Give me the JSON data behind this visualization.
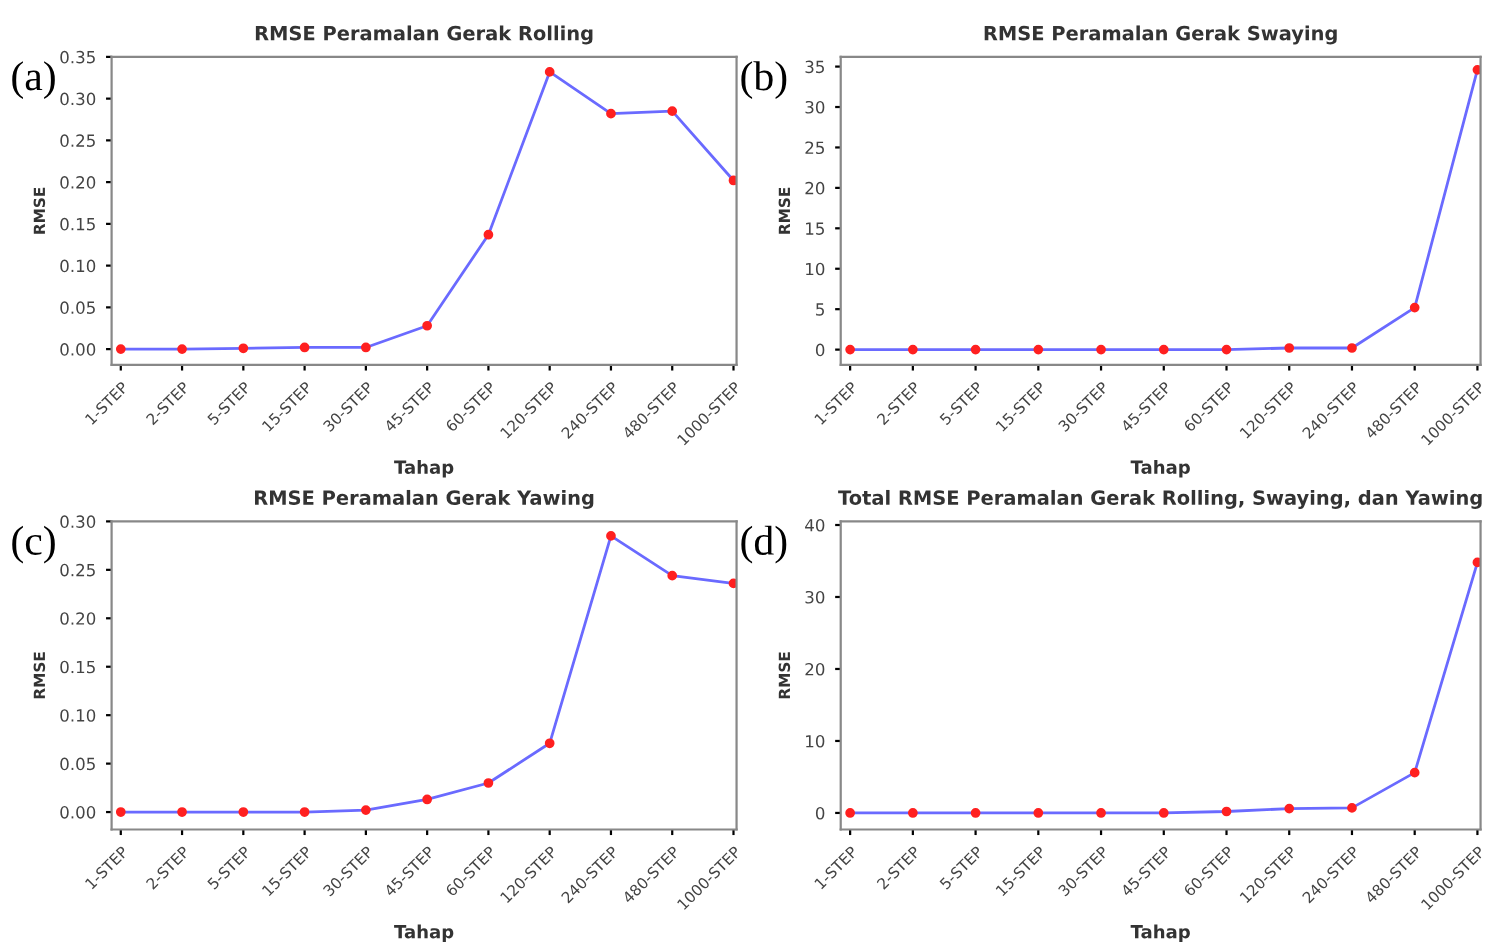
{
  "chart_data": [
    {
      "type": "line",
      "title": "RMSE Peramalan Gerak Rolling",
      "xlabel": "Tahap",
      "ylabel": "RMSE",
      "annotations": [
        "(a)"
      ],
      "categories": [
        "1-STEP",
        "2-STEP",
        "5-STEP",
        "15-STEP",
        "30-STEP",
        "45-STEP",
        "60-STEP",
        "120-STEP",
        "240-STEP",
        "480-STEP",
        "1000-STEP"
      ],
      "series": [
        {
          "color": "#6a6aff",
          "values": [
            0,
            0,
            0.001,
            0.002,
            0.002,
            0.028,
            0.137,
            0.332,
            0.282,
            0.285,
            0.202
          ]
        }
      ],
      "marker": "circle",
      "line_style": "solid",
      "grid": false,
      "legend": false,
      "ylim": [
        -0.019,
        0.35
      ],
      "yticks": [
        {
          "value": 0,
          "label": "0.00"
        },
        0.05,
        {
          "value": 0.1,
          "label": "0.10"
        },
        0.15,
        {
          "value": 0.2,
          "label": "0.20"
        },
        0.25,
        {
          "value": 0.3,
          "label": "0.30"
        },
        0.35
      ]
    },
    {
      "type": "line",
      "title": "RMSE Peramalan Gerak Swaying",
      "xlabel": "Tahap",
      "ylabel": "RMSE",
      "annotations": [
        "(b)"
      ],
      "categories": [
        "1-STEP",
        "2-STEP",
        "5-STEP",
        "15-STEP",
        "30-STEP",
        "45-STEP",
        "60-STEP",
        "120-STEP",
        "240-STEP",
        "480-STEP",
        "1000-STEP"
      ],
      "series": [
        {
          "color": "#6a6aff",
          "values": [
            0,
            0,
            0,
            0,
            0,
            0,
            0,
            0.2,
            0.2,
            5.2,
            34.6
          ]
        }
      ],
      "marker": "circle",
      "line_style": "solid",
      "grid": false,
      "legend": false,
      "ylim": [
        -1.9,
        36.2
      ],
      "yticks": [
        0,
        5,
        10,
        15,
        20,
        25,
        30,
        35
      ]
    },
    {
      "type": "line",
      "title": "RMSE Peramalan Gerak Yawing",
      "xlabel": "Tahap",
      "ylabel": "RMSE",
      "annotations": [
        "(c)"
      ],
      "categories": [
        "1-STEP",
        "2-STEP",
        "5-STEP",
        "15-STEP",
        "30-STEP",
        "45-STEP",
        "60-STEP",
        "120-STEP",
        "240-STEP",
        "480-STEP",
        "1000-STEP"
      ],
      "series": [
        {
          "color": "#6a6aff",
          "values": [
            0,
            0,
            0,
            0,
            0.002,
            0.013,
            0.03,
            0.071,
            0.285,
            0.244,
            0.236
          ]
        }
      ],
      "marker": "circle",
      "line_style": "solid",
      "grid": false,
      "legend": false,
      "ylim": [
        -0.018,
        0.3
      ],
      "yticks": [
        {
          "value": 0,
          "label": "0.00"
        },
        0.05,
        {
          "value": 0.1,
          "label": "0.10"
        },
        0.15,
        {
          "value": 0.2,
          "label": "0.20"
        },
        0.25,
        {
          "value": 0.3,
          "label": "0.30"
        }
      ]
    },
    {
      "type": "line",
      "title": "Total RMSE Peramalan Gerak Rolling, Swaying, dan Yawing",
      "xlabel": "Tahap",
      "ylabel": "RMSE",
      "annotations": [
        "(d)"
      ],
      "categories": [
        "1-STEP",
        "2-STEP",
        "5-STEP",
        "15-STEP",
        "30-STEP",
        "45-STEP",
        "60-STEP",
        "120-STEP",
        "240-STEP",
        "480-STEP",
        "1000-STEP"
      ],
      "series": [
        {
          "color": "#6a6aff",
          "values": [
            0,
            0,
            0,
            0,
            0,
            0,
            0.2,
            0.6,
            0.7,
            5.6,
            34.8
          ]
        }
      ],
      "marker": "circle",
      "line_style": "solid",
      "grid": false,
      "legend": false,
      "ylim": [
        -2.3,
        40.5
      ],
      "yticks": [
        0,
        10,
        20,
        30,
        40
      ]
    }
  ]
}
